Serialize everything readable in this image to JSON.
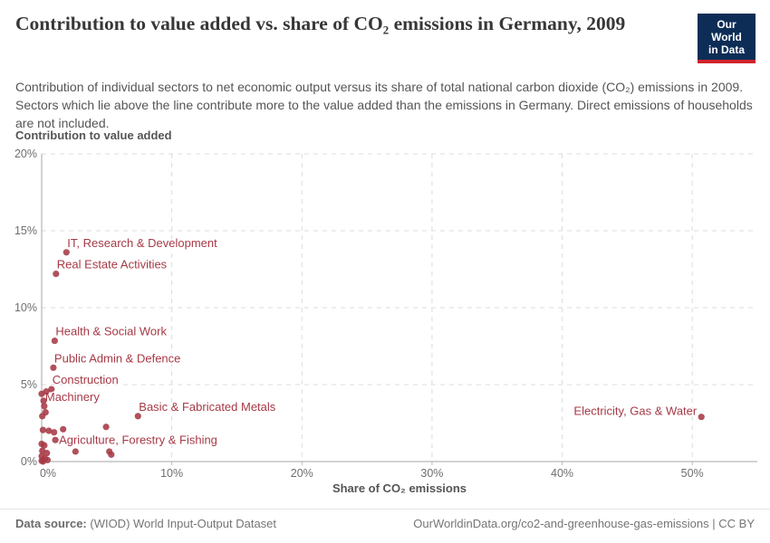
{
  "header": {
    "title": "Contribution to value added vs. share of CO₂ emissions in Germany, 2009",
    "logo": {
      "line1": "Our World",
      "line2": "in Data",
      "bg_color": "#0d2d56",
      "accent_color": "#d0232e"
    }
  },
  "subtitle": "Contribution of individual sectors to net economic output versus its share of total national carbon dioxide (CO₂) emissions in 2009. Sectors which lie above the line contribute more to the value added than the emissions in Germany. Direct emissions of households are not included.",
  "chart_data": {
    "type": "scatter",
    "title": "Contribution to value added vs. share of CO₂ emissions in Germany, 2009",
    "xlabel": "Share of CO₂ emissions",
    "ylabel": "Contribution to value added",
    "xlim": [
      0,
      55
    ],
    "ylim": [
      0,
      20
    ],
    "x_ticks": [
      0,
      10,
      20,
      30,
      40,
      50
    ],
    "y_ticks": [
      0,
      5,
      10,
      15,
      20
    ],
    "tick_suffix": "%",
    "grid": true,
    "legend": false,
    "point_color": "#a63946",
    "points": [
      {
        "x": 1.9,
        "y": 13.6,
        "label": "IT, Research & Development",
        "label_pos": "above-right"
      },
      {
        "x": 1.1,
        "y": 12.2,
        "label": "Real Estate Activities",
        "label_pos": "above-right"
      },
      {
        "x": 1.0,
        "y": 7.85,
        "label": "Health & Social Work",
        "label_pos": "above-right"
      },
      {
        "x": 0.9,
        "y": 6.1,
        "label": "Public Admin & Defence",
        "label_pos": "above-right"
      },
      {
        "x": 0.75,
        "y": 4.7,
        "label": "Construction",
        "label_pos": "above-right"
      },
      {
        "x": 0.2,
        "y": 3.6,
        "label": "Machinery",
        "label_pos": "above-right"
      },
      {
        "x": 7.4,
        "y": 2.95,
        "label": "Basic & Fabricated Metals",
        "label_pos": "above-right"
      },
      {
        "x": 1.05,
        "y": 1.4,
        "label": "Agriculture, Forestry & Fishing",
        "label_pos": "right"
      },
      {
        "x": 50.7,
        "y": 2.9,
        "label": "Electricity, Gas & Water",
        "label_pos": "left"
      },
      {
        "x": 0.0,
        "y": 4.4
      },
      {
        "x": 0.35,
        "y": 4.55
      },
      {
        "x": 0.15,
        "y": 3.95
      },
      {
        "x": 0.3,
        "y": 3.2
      },
      {
        "x": 0.05,
        "y": 2.95
      },
      {
        "x": 0.1,
        "y": 2.05
      },
      {
        "x": 0.55,
        "y": 2.0
      },
      {
        "x": 0.95,
        "y": 1.9
      },
      {
        "x": 1.65,
        "y": 2.1
      },
      {
        "x": 4.95,
        "y": 2.25
      },
      {
        "x": 0.2,
        "y": 1.05
      },
      {
        "x": 0.0,
        "y": 1.15
      },
      {
        "x": 0.05,
        "y": 0.7
      },
      {
        "x": 0.4,
        "y": 0.55
      },
      {
        "x": 2.6,
        "y": 0.65
      },
      {
        "x": 5.2,
        "y": 0.65
      },
      {
        "x": 5.35,
        "y": 0.45
      },
      {
        "x": 0.0,
        "y": 0.35
      },
      {
        "x": 0.25,
        "y": 0.2
      },
      {
        "x": 0.1,
        "y": 0.0
      },
      {
        "x": 0.0,
        "y": 0.05
      },
      {
        "x": 0.45,
        "y": 0.1
      }
    ]
  },
  "footer": {
    "source_label": "Data source:",
    "source_text": " (WIOD) World Input-Output Dataset",
    "link": "OurWorldinData.org/co2-and-greenhouse-gas-emissions",
    "license": "| CC BY"
  }
}
